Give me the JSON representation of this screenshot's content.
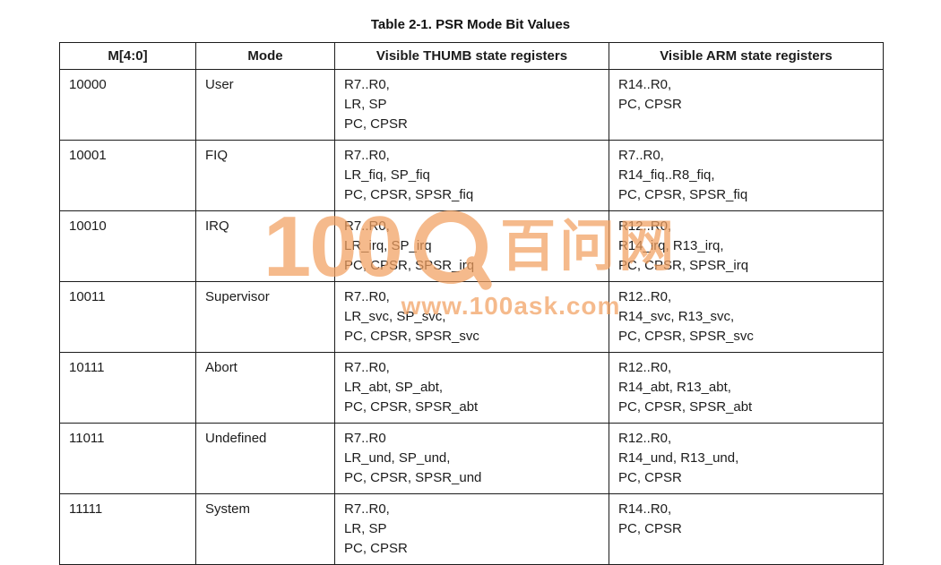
{
  "title": "Table 2-1. PSR Mode Bit Values",
  "table": {
    "headers": [
      "M[4:0]",
      "Mode",
      "Visible THUMB state registers",
      "Visible ARM state registers"
    ],
    "rows": [
      {
        "m": "10000",
        "mode": "User",
        "thumb": "R7..R0,\nLR, SP\nPC, CPSR",
        "arm": "R14..R0,\nPC, CPSR"
      },
      {
        "m": "10001",
        "mode": "FIQ",
        "thumb": "R7..R0,\nLR_fiq, SP_fiq\nPC, CPSR, SPSR_fiq",
        "arm": "R7..R0,\nR14_fiq..R8_fiq,\nPC, CPSR, SPSR_fiq"
      },
      {
        "m": "10010",
        "mode": "IRQ",
        "thumb": "R7..R0,\nLR_irq, SP_irq\nPC, CPSR, SPSR_irq",
        "arm": "R12..R0,\nR14_irq, R13_irq,\nPC, CPSR, SPSR_irq"
      },
      {
        "m": "10011",
        "mode": "Supervisor",
        "thumb": "R7..R0,\nLR_svc, SP_svc,\nPC, CPSR, SPSR_svc",
        "arm": "R12..R0,\nR14_svc, R13_svc,\nPC, CPSR, SPSR_svc"
      },
      {
        "m": "10111",
        "mode": "Abort",
        "thumb": "R7..R0,\nLR_abt, SP_abt,\nPC, CPSR, SPSR_abt",
        "arm": "R12..R0,\nR14_abt, R13_abt,\nPC, CPSR, SPSR_abt"
      },
      {
        "m": "11011",
        "mode": "Undefined",
        "thumb": "R7..R0\nLR_und, SP_und,\nPC, CPSR, SPSR_und",
        "arm": "R12..R0,\nR14_und, R13_und,\nPC, CPSR"
      },
      {
        "m": "11111",
        "mode": "System",
        "thumb": "R7..R0,\nLR, SP\nPC, CPSR",
        "arm": "R14..R0,\nPC, CPSR"
      }
    ]
  },
  "watermark": {
    "number": "100",
    "brand": "百问网",
    "url": "www.100ask.com",
    "color": "#f2a060"
  }
}
